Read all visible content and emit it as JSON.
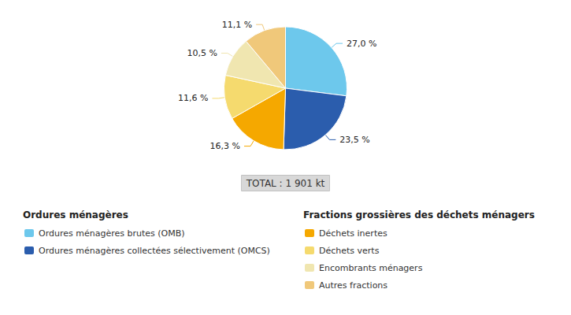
{
  "chart_data": {
    "type": "pie",
    "categories": [
      "Ordures ménagères brutes (OMB)",
      "Ordures ménagères collectées sélectivement (OMCS)",
      "Déchets inertes",
      "Déchets verts",
      "Encombrants ménagers",
      "Autres fractions"
    ],
    "values": [
      27.0,
      23.5,
      16.3,
      11.6,
      10.5,
      11.1
    ],
    "value_labels": [
      "27,0 %",
      "23,5 %",
      "16,3 %",
      "11,6 %",
      "10,5 %",
      "11,1 %"
    ],
    "colors": [
      "#6DC8EC",
      "#2B5DAD",
      "#F5A800",
      "#F5DA6E",
      "#F0E6B0",
      "#F0C87A"
    ],
    "data_labels": true,
    "annotations": [
      "TOTAL : 1 901 kt"
    ],
    "legend": "bottom",
    "legend_groups": [
      {
        "title": "Ordures ménagères",
        "items": [
          "Ordures ménagères brutes (OMB)",
          "Ordures ménagères collectées sélectivement (OMCS)"
        ]
      },
      {
        "title": "Fractions grossières des déchets ménagers",
        "items": [
          "Déchets inertes",
          "Déchets verts",
          "Encombrants ménagers",
          "Autres fractions"
        ]
      }
    ]
  }
}
